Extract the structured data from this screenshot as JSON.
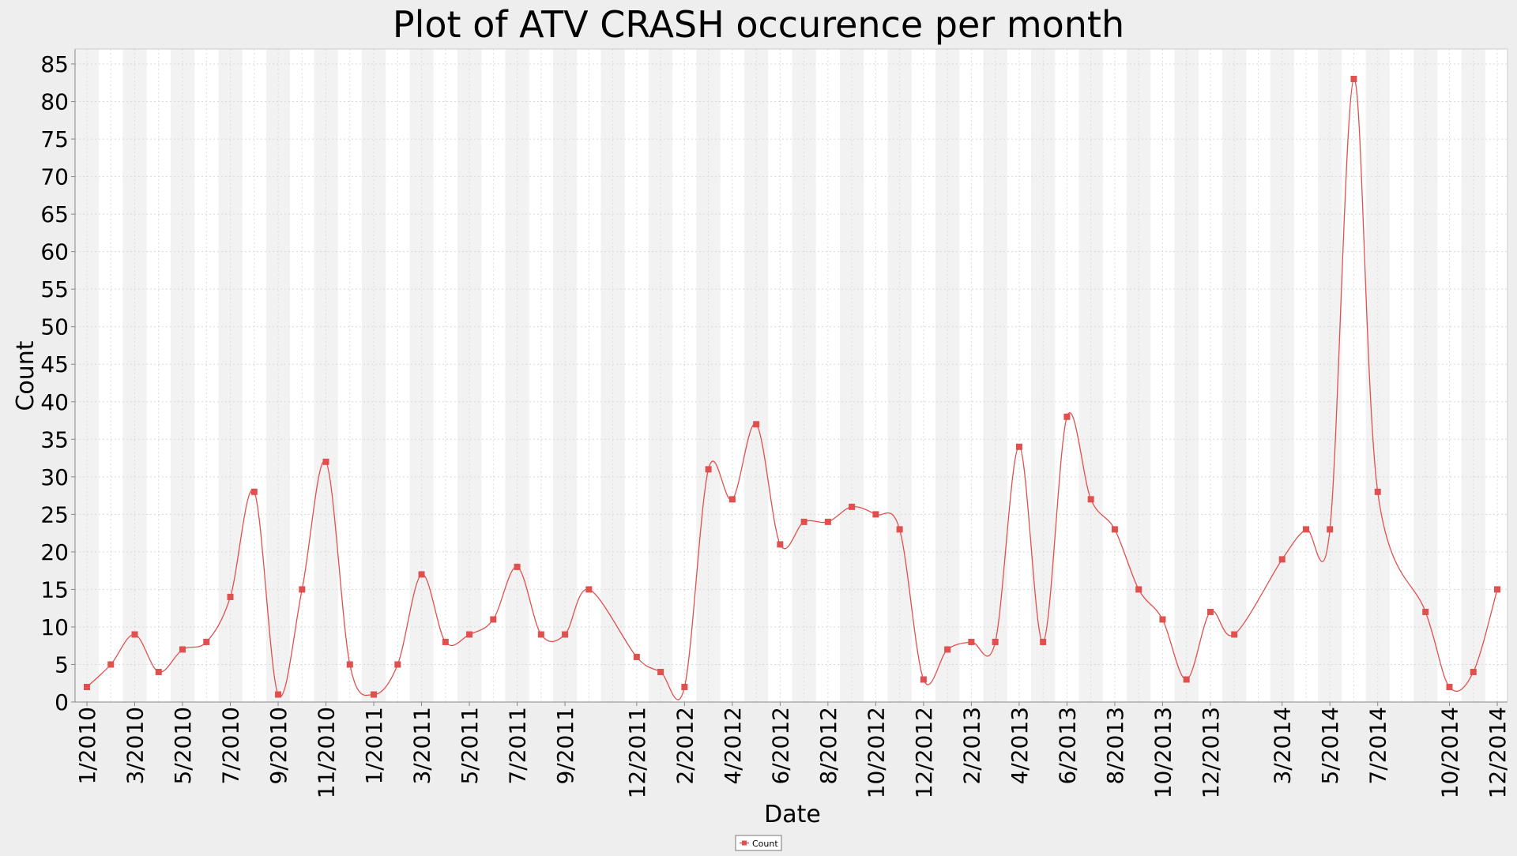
{
  "chart_data": {
    "type": "line",
    "title": "Plot of ATV CRASH occurence per month",
    "xlabel": "Date",
    "ylabel": "Count",
    "ylim": [
      0,
      87
    ],
    "yticks": [
      0,
      5,
      10,
      15,
      20,
      25,
      30,
      35,
      40,
      45,
      50,
      55,
      60,
      65,
      70,
      75,
      80,
      85
    ],
    "grid": true,
    "legend_position": "bottom-center",
    "series": [
      {
        "name": "Count",
        "color": "#e0504f",
        "marker": "square",
        "points": [
          {
            "x": "1/2010",
            "y": 2
          },
          {
            "x": "2/2010",
            "y": 5
          },
          {
            "x": "3/2010",
            "y": 9
          },
          {
            "x": "4/2010",
            "y": 4
          },
          {
            "x": "5/2010",
            "y": 7
          },
          {
            "x": "6/2010",
            "y": 8
          },
          {
            "x": "7/2010",
            "y": 14
          },
          {
            "x": "8/2010",
            "y": 28
          },
          {
            "x": "9/2010",
            "y": 1
          },
          {
            "x": "10/2010",
            "y": 15
          },
          {
            "x": "11/2010",
            "y": 32
          },
          {
            "x": "12/2010",
            "y": 5
          },
          {
            "x": "1/2011",
            "y": 1
          },
          {
            "x": "2/2011",
            "y": 5
          },
          {
            "x": "3/2011",
            "y": 17
          },
          {
            "x": "4/2011",
            "y": 8
          },
          {
            "x": "5/2011",
            "y": 9
          },
          {
            "x": "6/2011",
            "y": 11
          },
          {
            "x": "7/2011",
            "y": 18
          },
          {
            "x": "8/2011",
            "y": 9
          },
          {
            "x": "9/2011",
            "y": 9
          },
          {
            "x": "10/2011",
            "y": 15
          },
          {
            "x": "12/2011",
            "y": 6
          },
          {
            "x": "1/2012",
            "y": 4
          },
          {
            "x": "2/2012",
            "y": 2
          },
          {
            "x": "3/2012",
            "y": 31
          },
          {
            "x": "4/2012",
            "y": 27
          },
          {
            "x": "5/2012",
            "y": 37
          },
          {
            "x": "6/2012",
            "y": 21
          },
          {
            "x": "7/2012",
            "y": 24
          },
          {
            "x": "8/2012",
            "y": 24
          },
          {
            "x": "9/2012",
            "y": 26
          },
          {
            "x": "10/2012",
            "y": 25
          },
          {
            "x": "11/2012",
            "y": 23
          },
          {
            "x": "12/2012",
            "y": 3
          },
          {
            "x": "1/2013",
            "y": 7
          },
          {
            "x": "2/2013",
            "y": 8
          },
          {
            "x": "3/2013",
            "y": 8
          },
          {
            "x": "4/2013",
            "y": 34
          },
          {
            "x": "5/2013",
            "y": 8
          },
          {
            "x": "6/2013",
            "y": 38
          },
          {
            "x": "7/2013",
            "y": 27
          },
          {
            "x": "8/2013",
            "y": 23
          },
          {
            "x": "9/2013",
            "y": 15
          },
          {
            "x": "10/2013",
            "y": 11
          },
          {
            "x": "11/2013",
            "y": 3
          },
          {
            "x": "12/2013",
            "y": 12
          },
          {
            "x": "1/2014",
            "y": 9
          },
          {
            "x": "3/2014",
            "y": 19
          },
          {
            "x": "4/2014",
            "y": 23
          },
          {
            "x": "5/2014",
            "y": 23
          },
          {
            "x": "6/2014",
            "y": 83
          },
          {
            "x": "7/2014",
            "y": 28
          },
          {
            "x": "9/2014",
            "y": 12
          },
          {
            "x": "10/2014",
            "y": 2
          },
          {
            "x": "11/2014",
            "y": 4
          },
          {
            "x": "12/2014",
            "y": 15
          }
        ]
      }
    ],
    "xtick_labels": [
      "1/2010",
      "3/2010",
      "5/2010",
      "7/2010",
      "9/2010",
      "11/2010",
      "1/2011",
      "3/2011",
      "5/2011",
      "7/2011",
      "9/2011",
      "12/2011",
      "2/2012",
      "4/2012",
      "6/2012",
      "8/2012",
      "10/2012",
      "12/2012",
      "2/2013",
      "4/2013",
      "6/2013",
      "8/2013",
      "10/2013",
      "12/2013",
      "3/2014",
      "5/2014",
      "7/2014",
      "10/2014",
      "12/2014"
    ]
  }
}
